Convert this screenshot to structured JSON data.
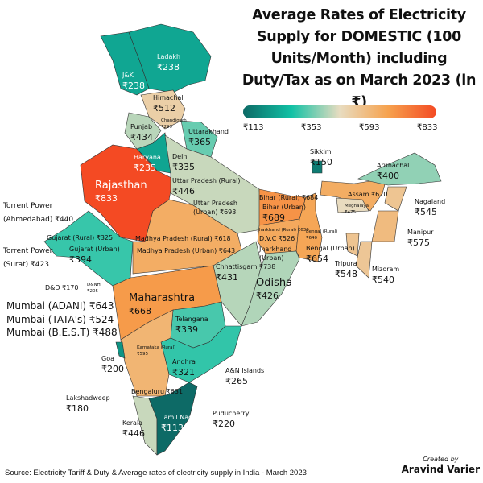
{
  "title": "Average Rates of Electricity Supply for DOMESTIC (100 Units/Month) including Duty/Tax as on March 2023 (in ₹)",
  "legend": {
    "ticks": [
      "₹113",
      "₹353",
      "₹593",
      "₹833"
    ],
    "min": 113,
    "max": 833,
    "colors": [
      "#0d6a66",
      "#11c1a5",
      "#e8dcc0",
      "#f6a24e",
      "#f44a23"
    ]
  },
  "regions": [
    {
      "name": "Ladakh",
      "value": "₹238"
    },
    {
      "name": "J&K",
      "value": "₹238"
    },
    {
      "name": "Himachal",
      "value": "₹512"
    },
    {
      "name": "Chandigarh",
      "value": "₹299"
    },
    {
      "name": "Punjab",
      "value": "₹434"
    },
    {
      "name": "Uttarakhand",
      "value": "₹365"
    },
    {
      "name": "Haryana",
      "value": "₹235"
    },
    {
      "name": "Delhi",
      "value": "₹335"
    },
    {
      "name": "Rajasthan",
      "value": "₹833"
    },
    {
      "name": "Uttar Pradesh (Rural)",
      "value": "₹446"
    },
    {
      "name": "Uttar Pradesh (Urban)",
      "value": "₹693"
    },
    {
      "name": "Bihar (Rural)",
      "value": "₹684"
    },
    {
      "name": "Bihar (Urban)",
      "value": "₹689"
    },
    {
      "name": "Jharkhand (Rural)",
      "value": "₹630"
    },
    {
      "name": "D.V.C",
      "value": "₹526"
    },
    {
      "name": "Jharkhand (Urban)",
      "value": "₹738"
    },
    {
      "name": "Bengal (Rural)",
      "value": "₹640"
    },
    {
      "name": "Bengal (Urban)",
      "value": "₹654"
    },
    {
      "name": "Sikkim",
      "value": "₹150"
    },
    {
      "name": "Arunachal",
      "value": "₹400"
    },
    {
      "name": "Assam",
      "value": "₹620"
    },
    {
      "name": "Meghalaya",
      "value": "₹475"
    },
    {
      "name": "Nagaland",
      "value": "₹545"
    },
    {
      "name": "Manipur",
      "value": "₹575"
    },
    {
      "name": "Tripura",
      "value": "₹548"
    },
    {
      "name": "Mizoram",
      "value": "₹540"
    },
    {
      "name": "Gujarat (Rural)",
      "value": "₹325"
    },
    {
      "name": "Gujarat (Urban)",
      "value": "₹394"
    },
    {
      "name": "Madhya Pradesh (Rural)",
      "value": "₹618"
    },
    {
      "name": "Madhya Pradesh (Urban)",
      "value": "₹643"
    },
    {
      "name": "Chhattisgarh",
      "value": "₹431"
    },
    {
      "name": "Odisha",
      "value": "₹426"
    },
    {
      "name": "Maharashtra",
      "value": "₹668"
    },
    {
      "name": "Telangana",
      "value": "₹339"
    },
    {
      "name": "Karnataka (Rural)",
      "value": "₹595"
    },
    {
      "name": "Bengaluru",
      "value": "₹631"
    },
    {
      "name": "Andhra",
      "value": "₹321"
    },
    {
      "name": "Goa",
      "value": "₹200"
    },
    {
      "name": "Kerala",
      "value": "₹446"
    },
    {
      "name": "Tamil Nadu",
      "value": "₹113"
    },
    {
      "name": "Puducherry",
      "value": "₹220"
    },
    {
      "name": "A&N Islands",
      "value": "₹265"
    },
    {
      "name": "Lakshadweep",
      "value": "₹180"
    },
    {
      "name": "D&D",
      "value": "₹170"
    },
    {
      "name": "D&NH",
      "value": "₹205"
    }
  ],
  "side_labels": {
    "torrent_ahmedabad": {
      "line1": "Torrent Power",
      "line2": "(Ahmedabad) ₹440"
    },
    "torrent_surat": {
      "line1": "Torrent Power",
      "line2": "(Surat) ₹423"
    }
  },
  "mumbai": [
    "Mumbai (ADANI) ₹643",
    "Mumbai (TATA's) ₹524",
    "Mumbai (B.E.S.T) ₹488"
  ],
  "source": "Source: Electricity Tariff & Duty & Average rates of electricity supply in India - March 2023",
  "credit": {
    "line1": "Created by",
    "line2": "Aravind Varier"
  }
}
